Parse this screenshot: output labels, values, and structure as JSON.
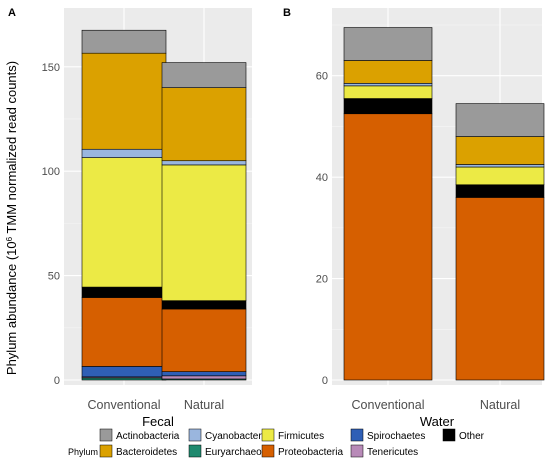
{
  "figure": {
    "legend_title": "Phylum",
    "y_axis_title_main": "Phylum abundance (10",
    "y_axis_title_sup": "6",
    "y_axis_title_rest": " TMM normalized read counts)"
  },
  "colors": {
    "Actinobacteria": "#9a9a9a",
    "Bacteroidetes": "#dba100",
    "Cyanobacteria": "#9ab6de",
    "Euryarchaeota": "#1f8a6f",
    "Firmicutes": "#ecea45",
    "Proteobacteria": "#d65f00",
    "Spirochaetes": "#2f5fb6",
    "Tenericutes": "#b88ab8",
    "Other": "#000000"
  },
  "legend": {
    "items": [
      {
        "label": "Actinobacteria",
        "color": "#9a9a9a"
      },
      {
        "label": "Bacteroidetes",
        "color": "#dba100"
      },
      {
        "label": "Cyanobacteria",
        "color": "#9ab6de"
      },
      {
        "label": "Euryarchaeota",
        "color": "#1f8a6f"
      },
      {
        "label": "Firmicutes",
        "color": "#ecea45"
      },
      {
        "label": "Proteobacteria",
        "color": "#d65f00"
      },
      {
        "label": "Spirochaetes",
        "color": "#2f5fb6"
      },
      {
        "label": "Tenericutes",
        "color": "#b88ab8"
      },
      {
        "label": "Other",
        "color": "#000000"
      }
    ]
  },
  "chart_data": [
    {
      "type": "bar",
      "stacked": true,
      "panel_label": "A",
      "xlabel": "Fecal",
      "ylabel": "Phylum abundance (10^6 TMM normalized read counts)",
      "ylim": [
        0,
        170
      ],
      "yticks": [
        0,
        50,
        100,
        150
      ],
      "grid": true,
      "categories": [
        "Conventional",
        "Natural"
      ],
      "category_colors": [
        "#c2185b",
        "#4d4d4d"
      ],
      "stack_order": [
        "Euryarchaeota",
        "Tenericutes",
        "Spirochaetes",
        "Proteobacteria",
        "Other",
        "Firmicutes",
        "Cyanobacteria",
        "Bacteroidetes",
        "Actinobacteria"
      ],
      "series": [
        {
          "name": "Euryarchaeota",
          "values": [
            1.0,
            0.5
          ]
        },
        {
          "name": "Tenericutes",
          "values": [
            0.5,
            1.5
          ]
        },
        {
          "name": "Spirochaetes",
          "values": [
            5.0,
            2.0
          ]
        },
        {
          "name": "Proteobacteria",
          "values": [
            33.0,
            30.0
          ]
        },
        {
          "name": "Other",
          "values": [
            5.0,
            4.0
          ]
        },
        {
          "name": "Firmicutes",
          "values": [
            62.0,
            65.0
          ]
        },
        {
          "name": "Cyanobacteria",
          "values": [
            4.0,
            2.0
          ]
        },
        {
          "name": "Bacteroidetes",
          "values": [
            46.0,
            35.0
          ]
        },
        {
          "name": "Actinobacteria",
          "values": [
            11.0,
            12.0
          ]
        }
      ]
    },
    {
      "type": "bar",
      "stacked": true,
      "panel_label": "B",
      "xlabel": "Water",
      "ylabel": "",
      "ylim": [
        0,
        70
      ],
      "yticks": [
        0,
        20,
        40,
        60
      ],
      "grid": true,
      "categories": [
        "Conventional",
        "Natural"
      ],
      "category_colors": [
        "#4d4d4d",
        "#4d4d4d"
      ],
      "stack_order": [
        "Euryarchaeota",
        "Tenericutes",
        "Spirochaetes",
        "Proteobacteria",
        "Other",
        "Firmicutes",
        "Cyanobacteria",
        "Bacteroidetes",
        "Actinobacteria"
      ],
      "series": [
        {
          "name": "Euryarchaeota",
          "values": [
            0.0,
            0.0
          ]
        },
        {
          "name": "Tenericutes",
          "values": [
            0.0,
            0.0
          ]
        },
        {
          "name": "Spirochaetes",
          "values": [
            0.0,
            0.0
          ]
        },
        {
          "name": "Proteobacteria",
          "values": [
            52.5,
            36.0
          ]
        },
        {
          "name": "Other",
          "values": [
            3.0,
            2.5
          ]
        },
        {
          "name": "Firmicutes",
          "values": [
            2.5,
            3.5
          ]
        },
        {
          "name": "Cyanobacteria",
          "values": [
            0.5,
            0.5
          ]
        },
        {
          "name": "Bacteroidetes",
          "values": [
            4.5,
            5.5
          ]
        },
        {
          "name": "Actinobacteria",
          "values": [
            6.5,
            6.5
          ]
        }
      ]
    }
  ]
}
